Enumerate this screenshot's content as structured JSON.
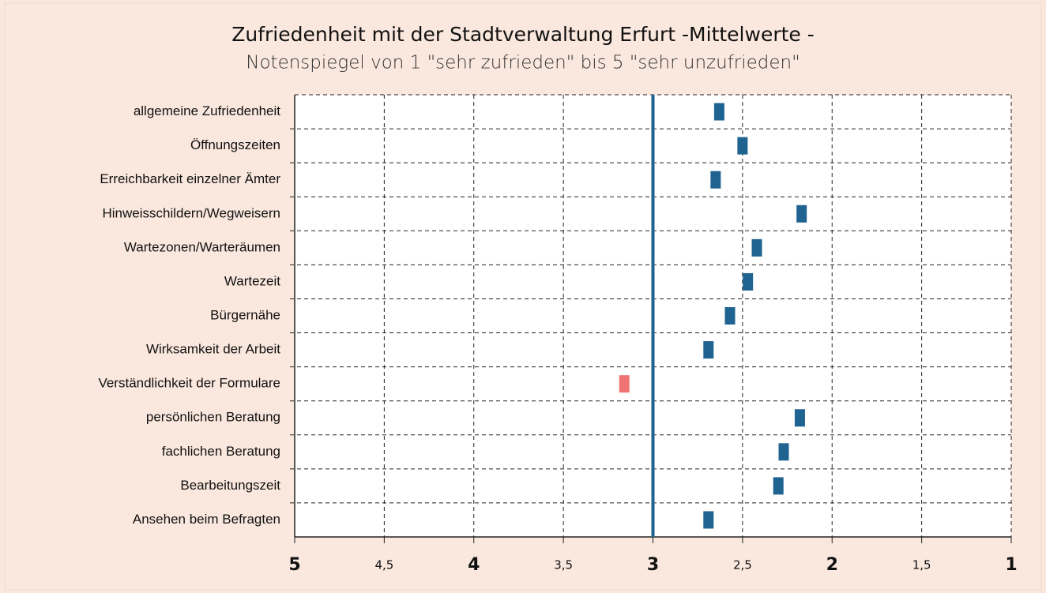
{
  "chart_data": {
    "type": "dot",
    "title": "Zufriedenheit mit der Stadtverwaltung Erfurt -Mittelwerte -",
    "subtitle": "Notenspiegel von 1 \"sehr zufrieden\" bis 5 \"sehr unzufrieden\"",
    "categories": [
      "allgemeine Zufriedenheit",
      "Öffnungszeiten",
      "Erreichbarkeit einzelner Ämter",
      "Hinweisschildern/Wegweisern",
      "Wartezonen/Warteräumen",
      "Wartezeit",
      "Bürgernähe",
      "Wirksamkeit der Arbeit",
      "Verständlichkeit der Formulare",
      "persönlichen Beratung",
      "fachlichen Beratung",
      "Bearbeitungszeit",
      "Ansehen beim Befragten"
    ],
    "values": [
      2.63,
      2.5,
      2.65,
      2.17,
      2.42,
      2.47,
      2.57,
      2.69,
      3.16,
      2.18,
      2.27,
      2.3,
      2.69
    ],
    "colors": [
      "#1f6391",
      "#1f6391",
      "#1f6391",
      "#1f6391",
      "#1f6391",
      "#1f6391",
      "#1f6391",
      "#1f6391",
      "#f07373",
      "#1f6391",
      "#1f6391",
      "#1f6391",
      "#1f6391"
    ],
    "reference_line": 3,
    "reference_color": "#1f6391",
    "xlim": [
      5,
      1
    ],
    "xticks": [
      5,
      {
        "value": 4.5,
        "label": "4,5"
      },
      4,
      {
        "value": 3.5,
        "label": "3,5"
      },
      3,
      {
        "value": 2.5,
        "label": "2,5"
      },
      2,
      {
        "value": 1.5,
        "label": "1,5"
      },
      1
    ],
    "grid": true
  }
}
